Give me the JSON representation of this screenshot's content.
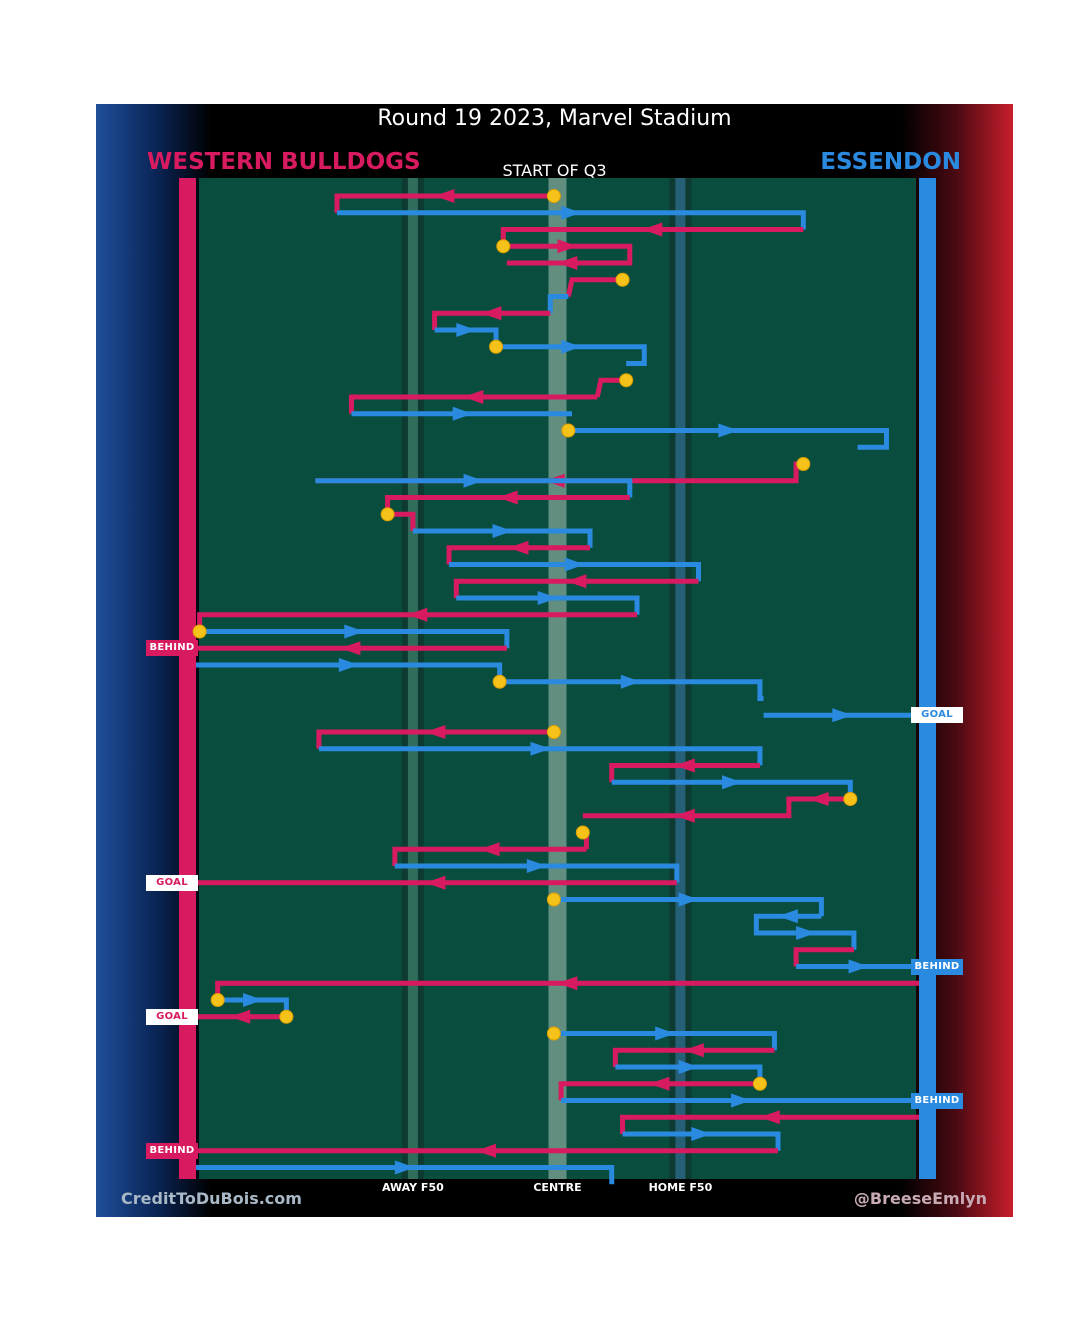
{
  "title": "Round 19 2023, Marvel Stadium",
  "teams": {
    "home": {
      "name": "WESTERN BULLDOGS",
      "color": "#d81b60"
    },
    "away": {
      "name": "ESSENDON",
      "color": "#2a8ae0"
    }
  },
  "period_label": "START OF Q3",
  "x_ticks": {
    "away_f50": "AWAY F50",
    "centre": "CENTRE",
    "home_f50": "HOME F50"
  },
  "credits": {
    "left": "CreditToDuBois.com",
    "right": "@BreeseEmlyn"
  },
  "chart_data": {
    "type": "line",
    "description_of_axes": "x = ground position from Western Bulldogs goal (0) to Essendon goal (100); y = chain sequence",
    "x_range": [
      0,
      100
    ],
    "x_tick_values": {
      "away_f50": 30,
      "centre": 50,
      "home_f50": 67
    },
    "chains": [
      {
        "team": "home",
        "start": true,
        "points": [
          [
            49.5,
            1
          ],
          [
            19.5,
            1
          ],
          [
            19.5,
            2
          ]
        ]
      },
      {
        "team": "away",
        "points": [
          [
            19.5,
            2
          ],
          [
            84,
            2
          ],
          [
            84,
            3
          ]
        ]
      },
      {
        "team": "home",
        "points": [
          [
            84,
            3
          ],
          [
            42.5,
            3
          ],
          [
            42.5,
            4
          ]
        ]
      },
      {
        "team": "home",
        "start": true,
        "points": [
          [
            42.5,
            4
          ],
          [
            60,
            4
          ],
          [
            60,
            5
          ],
          [
            43,
            5
          ]
        ]
      },
      {
        "team": "home",
        "start": true,
        "points": [
          [
            59,
            6
          ],
          [
            52,
            6
          ],
          [
            51.5,
            7
          ]
        ]
      },
      {
        "team": "away",
        "points": [
          [
            51.5,
            7
          ],
          [
            49,
            7
          ],
          [
            49,
            8
          ]
        ]
      },
      {
        "team": "home",
        "points": [
          [
            49,
            8
          ],
          [
            33,
            8
          ],
          [
            33,
            9
          ]
        ]
      },
      {
        "team": "away",
        "points": [
          [
            33,
            9
          ],
          [
            41.5,
            9
          ],
          [
            41.5,
            10
          ]
        ]
      },
      {
        "team": "away",
        "start": true,
        "points": [
          [
            41.5,
            10
          ],
          [
            62,
            10
          ],
          [
            62,
            11
          ],
          [
            59.5,
            11
          ]
        ]
      },
      {
        "team": "home",
        "start": true,
        "points": [
          [
            59.5,
            12
          ],
          [
            56,
            12
          ],
          [
            55.5,
            13
          ]
        ]
      },
      {
        "team": "home",
        "points": [
          [
            55.5,
            13
          ],
          [
            21.5,
            13
          ],
          [
            21.5,
            14
          ]
        ]
      },
      {
        "team": "away",
        "points": [
          [
            21.5,
            14
          ],
          [
            52,
            14
          ]
        ]
      },
      {
        "team": "away",
        "start": true,
        "points": [
          [
            51.5,
            15
          ],
          [
            95.5,
            15
          ],
          [
            95.5,
            16
          ],
          [
            91.5,
            16
          ]
        ]
      },
      {
        "team": "home",
        "start": true,
        "points": [
          [
            84,
            17
          ],
          [
            83,
            17
          ],
          [
            83,
            18
          ],
          [
            16.5,
            18
          ]
        ]
      },
      {
        "team": "away",
        "points": [
          [
            16.5,
            18
          ],
          [
            60,
            18
          ],
          [
            60,
            19
          ]
        ]
      },
      {
        "team": "home",
        "points": [
          [
            60,
            19
          ],
          [
            26.5,
            19
          ],
          [
            26.5,
            20
          ]
        ]
      },
      {
        "team": "home",
        "start": true,
        "points": [
          [
            26.5,
            20
          ],
          [
            30,
            20
          ],
          [
            30,
            21
          ]
        ]
      },
      {
        "team": "away",
        "points": [
          [
            30,
            21
          ],
          [
            54.5,
            21
          ],
          [
            54.5,
            22
          ]
        ]
      },
      {
        "team": "home",
        "points": [
          [
            54.5,
            22
          ],
          [
            35,
            22
          ],
          [
            35,
            23
          ]
        ]
      },
      {
        "team": "away",
        "points": [
          [
            35,
            23
          ],
          [
            69.5,
            23
          ],
          [
            69.5,
            24
          ]
        ]
      },
      {
        "team": "home",
        "points": [
          [
            69.5,
            24
          ],
          [
            36,
            24
          ],
          [
            36,
            25
          ]
        ]
      },
      {
        "team": "away",
        "points": [
          [
            36,
            25
          ],
          [
            61,
            25
          ],
          [
            61,
            26
          ]
        ]
      },
      {
        "team": "home",
        "points": [
          [
            61,
            26
          ],
          [
            0.5,
            26
          ],
          [
            0.5,
            27
          ]
        ]
      },
      {
        "team": "away",
        "start": true,
        "points": [
          [
            0.5,
            27
          ],
          [
            43,
            27
          ],
          [
            43,
            28
          ]
        ]
      },
      {
        "team": "home",
        "result": "behind",
        "points": [
          [
            43,
            28
          ],
          [
            0,
            28
          ]
        ]
      },
      {
        "team": "away",
        "points": [
          [
            0,
            29
          ],
          [
            42,
            29
          ],
          [
            42,
            30
          ]
        ]
      },
      {
        "team": "away",
        "start": true,
        "points": [
          [
            42,
            30
          ],
          [
            78,
            30
          ],
          [
            78,
            31
          ],
          [
            78.5,
            31
          ]
        ]
      },
      {
        "team": "away",
        "result": "goal",
        "points": [
          [
            78.5,
            32
          ],
          [
            100,
            32
          ]
        ]
      },
      {
        "team": "home",
        "start": true,
        "points": [
          [
            49.5,
            33
          ],
          [
            17,
            33
          ],
          [
            17,
            34
          ]
        ]
      },
      {
        "team": "away",
        "points": [
          [
            17,
            34
          ],
          [
            78,
            34
          ],
          [
            78,
            35
          ]
        ]
      },
      {
        "team": "home",
        "points": [
          [
            78,
            35
          ],
          [
            57.5,
            35
          ],
          [
            57.5,
            36
          ]
        ]
      },
      {
        "team": "away",
        "points": [
          [
            57.5,
            36
          ],
          [
            90.5,
            36
          ],
          [
            90.5,
            37
          ]
        ]
      },
      {
        "team": "home",
        "start": true,
        "points": [
          [
            90.5,
            37
          ],
          [
            82,
            37
          ],
          [
            82,
            38
          ],
          [
            53.5,
            38
          ]
        ]
      },
      {
        "team": "home",
        "start": true,
        "points": [
          [
            53.5,
            39
          ],
          [
            54,
            39
          ],
          [
            54,
            40
          ]
        ]
      },
      {
        "team": "home",
        "points": [
          [
            54,
            40
          ],
          [
            27.5,
            40
          ],
          [
            27.5,
            41
          ]
        ]
      },
      {
        "team": "away",
        "points": [
          [
            27.5,
            41
          ],
          [
            66.5,
            41
          ],
          [
            66.5,
            42
          ]
        ]
      },
      {
        "team": "home",
        "result": "goal",
        "points": [
          [
            66.5,
            42
          ],
          [
            0,
            42
          ]
        ]
      },
      {
        "team": "away",
        "start": true,
        "points": [
          [
            49.5,
            43
          ],
          [
            86.5,
            43
          ],
          [
            86.5,
            44
          ]
        ]
      },
      {
        "team": "away",
        "points": [
          [
            86.5,
            44
          ],
          [
            77.5,
            44
          ],
          [
            77.5,
            45
          ],
          [
            91,
            45
          ],
          [
            91,
            46
          ]
        ]
      },
      {
        "team": "home",
        "points": [
          [
            91,
            46
          ],
          [
            83,
            46
          ],
          [
            83,
            47
          ]
        ]
      },
      {
        "team": "away",
        "result": "behind",
        "points": [
          [
            83,
            47
          ],
          [
            100,
            47
          ]
        ]
      },
      {
        "team": "home",
        "points": [
          [
            100,
            48
          ],
          [
            3,
            48
          ],
          [
            3,
            49
          ]
        ]
      },
      {
        "team": "away",
        "start": true,
        "points": [
          [
            3,
            49
          ],
          [
            12.5,
            49
          ],
          [
            12.5,
            50
          ]
        ]
      },
      {
        "team": "home",
        "result": "goal",
        "start": true,
        "points": [
          [
            12.5,
            50
          ],
          [
            0,
            50
          ]
        ]
      },
      {
        "team": "away",
        "start": true,
        "points": [
          [
            49.5,
            51
          ],
          [
            80,
            51
          ],
          [
            80,
            52
          ]
        ]
      },
      {
        "team": "home",
        "points": [
          [
            80,
            52
          ],
          [
            58,
            52
          ],
          [
            58,
            53
          ]
        ]
      },
      {
        "team": "away",
        "points": [
          [
            58,
            53
          ],
          [
            78,
            53
          ],
          [
            78,
            54
          ]
        ]
      },
      {
        "team": "home",
        "start": true,
        "points": [
          [
            78,
            54
          ],
          [
            50.5,
            54
          ],
          [
            50.5,
            55
          ]
        ]
      },
      {
        "team": "away",
        "result": "behind",
        "points": [
          [
            50.5,
            55
          ],
          [
            100,
            55
          ]
        ]
      },
      {
        "team": "home",
        "points": [
          [
            100,
            56
          ],
          [
            59,
            56
          ],
          [
            59,
            57
          ]
        ]
      },
      {
        "team": "away",
        "points": [
          [
            59,
            57
          ],
          [
            80.5,
            57
          ],
          [
            80.5,
            58
          ]
        ]
      },
      {
        "team": "home",
        "result": "behind",
        "points": [
          [
            80.5,
            58
          ],
          [
            0,
            58
          ]
        ]
      },
      {
        "team": "away",
        "points": [
          [
            0,
            59
          ],
          [
            57.5,
            59
          ],
          [
            57.5,
            60
          ]
        ]
      }
    ],
    "result_labels": {
      "goal": "GOAL",
      "behind": "BEHIND"
    }
  }
}
